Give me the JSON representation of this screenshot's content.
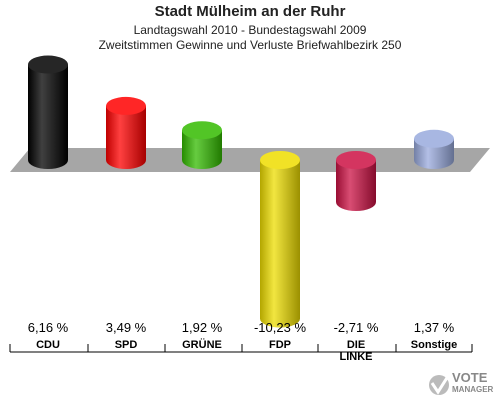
{
  "header": {
    "title": "Stadt Mülheim an der Ruhr",
    "subtitle1": "Landtagswahl 2010 - Bundestagswahl 2009",
    "subtitle2": "Zweitstimmen Gewinne und Verluste Briefwahlbezirk 250"
  },
  "logo": {
    "line1": "VOTE",
    "line2": "MANAGER"
  },
  "chart_data": {
    "type": "bar",
    "title": "Stadt Mülheim an der Ruhr",
    "categories": [
      "CDU",
      "SPD",
      "GRÜNE",
      "FDP",
      "DIE LINKE",
      "Sonstige"
    ],
    "category_lines": [
      [
        "CDU"
      ],
      [
        "SPD"
      ],
      [
        "GRÜNE"
      ],
      [
        "FDP"
      ],
      [
        "DIE",
        "LINKE"
      ],
      [
        "Sonstige"
      ]
    ],
    "values": [
      6.16,
      3.49,
      1.92,
      -10.23,
      -2.71,
      1.37
    ],
    "value_labels": [
      "6,16 %",
      "3,49 %",
      "1,92 %",
      "-10,23 %",
      "-2,71 %",
      "1,37 %"
    ],
    "colors": [
      "#000000",
      "#ff0000",
      "#33bb00",
      "#eedd00",
      "#cc1144",
      "#99aadd"
    ],
    "baseline_color": "#a6a6a6",
    "grid": false,
    "legend": "none"
  }
}
